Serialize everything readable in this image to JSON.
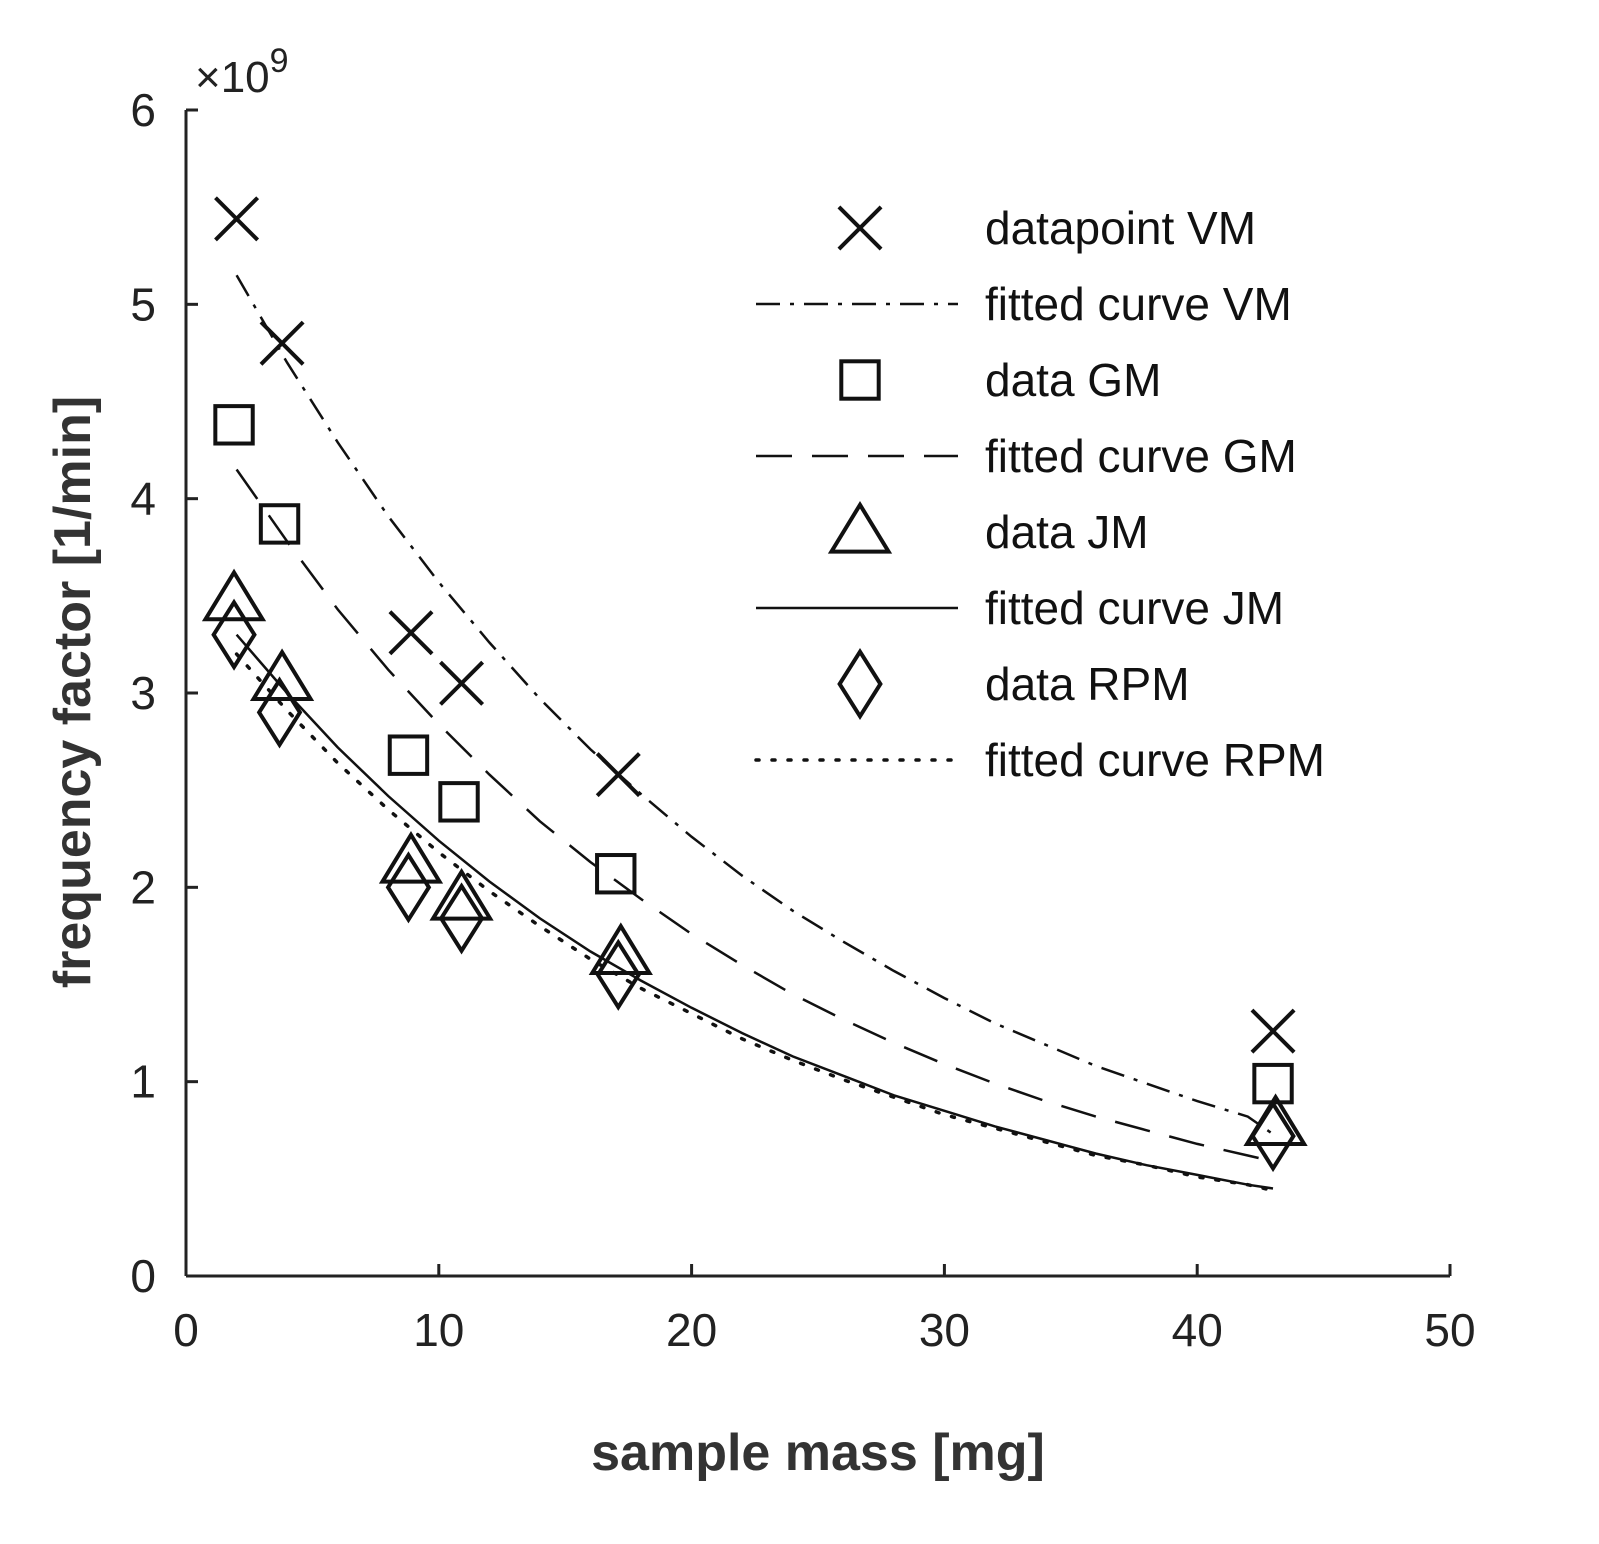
{
  "chart_data": {
    "type": "scatter",
    "xlabel": "sample mass [mg]",
    "ylabel": "frequency factor [1/min]",
    "y_exponent_prefix": "×10",
    "y_exponent": "9",
    "xlim": [
      0,
      50
    ],
    "ylim": [
      0,
      6
    ],
    "x_ticks": [
      0,
      10,
      20,
      30,
      40,
      50
    ],
    "y_ticks": [
      0,
      1,
      2,
      3,
      4,
      5,
      6
    ],
    "y_tick_unit": 1000000000,
    "grid": false,
    "legend_position": "top-right",
    "series": [
      {
        "name": "datapoint VM",
        "kind": "points",
        "marker": "x",
        "x": [
          2.0,
          3.8,
          8.9,
          10.9,
          17.1,
          43.0
        ],
        "y": [
          5.44,
          4.8,
          3.31,
          3.05,
          2.58,
          1.26
        ]
      },
      {
        "name": "fitted curve VM",
        "kind": "line",
        "dash": "dash-dot",
        "x": [
          2,
          4,
          6,
          8,
          10,
          12,
          14,
          16,
          18,
          20,
          22,
          24,
          26,
          28,
          30,
          32,
          34,
          36,
          38,
          40,
          42,
          43
        ],
        "y": [
          5.15,
          4.7,
          4.29,
          3.91,
          3.57,
          3.26,
          2.97,
          2.71,
          2.48,
          2.26,
          2.06,
          1.88,
          1.72,
          1.57,
          1.43,
          1.3,
          1.19,
          1.08,
          0.99,
          0.9,
          0.82,
          0.73
        ]
      },
      {
        "name": "data GM",
        "kind": "points",
        "marker": "square",
        "x": [
          1.9,
          3.7,
          8.8,
          10.8,
          17.0,
          43.0
        ],
        "y": [
          4.38,
          3.87,
          2.68,
          2.44,
          2.07,
          0.99
        ]
      },
      {
        "name": "fitted curve GM",
        "kind": "line",
        "dash": "long-dash",
        "x": [
          2,
          4,
          6,
          8,
          10,
          12,
          14,
          16,
          18,
          20,
          22,
          24,
          26,
          28,
          30,
          32,
          34,
          36,
          38,
          40,
          42,
          43
        ],
        "y": [
          4.15,
          3.78,
          3.43,
          3.12,
          2.84,
          2.58,
          2.34,
          2.13,
          1.94,
          1.76,
          1.6,
          1.45,
          1.32,
          1.2,
          1.09,
          0.99,
          0.9,
          0.82,
          0.75,
          0.68,
          0.62,
          0.59
        ]
      },
      {
        "name": "data JM",
        "kind": "points",
        "marker": "triangle",
        "x": [
          1.9,
          3.8,
          8.9,
          10.9,
          17.2,
          43.1
        ],
        "y": [
          3.48,
          3.07,
          2.13,
          1.94,
          1.66,
          0.78
        ]
      },
      {
        "name": "fitted curve JM",
        "kind": "line",
        "dash": "solid",
        "x": [
          2,
          4,
          6,
          8,
          10,
          12,
          14,
          16,
          18,
          20,
          22,
          24,
          26,
          28,
          30,
          32,
          34,
          36,
          38,
          40,
          42,
          43
        ],
        "y": [
          3.3,
          3.0,
          2.72,
          2.47,
          2.24,
          2.03,
          1.84,
          1.67,
          1.52,
          1.38,
          1.25,
          1.13,
          1.03,
          0.93,
          0.85,
          0.77,
          0.7,
          0.63,
          0.57,
          0.52,
          0.47,
          0.45
        ]
      },
      {
        "name": "data RPM",
        "kind": "points",
        "marker": "diamond",
        "x": [
          1.9,
          3.7,
          8.8,
          10.9,
          17.1,
          43.0
        ],
        "y": [
          3.3,
          2.9,
          2.0,
          1.84,
          1.55,
          0.72
        ]
      },
      {
        "name": "fitted curve RPM",
        "kind": "line",
        "dash": "dotted",
        "x": [
          2,
          4,
          6,
          8,
          10,
          12,
          14,
          16,
          18,
          20,
          22,
          24,
          26,
          28,
          30,
          32,
          34,
          36,
          38,
          40,
          42,
          43
        ],
        "y": [
          3.2,
          2.91,
          2.64,
          2.4,
          2.18,
          1.98,
          1.8,
          1.63,
          1.48,
          1.35,
          1.22,
          1.11,
          1.01,
          0.92,
          0.83,
          0.76,
          0.69,
          0.62,
          0.57,
          0.51,
          0.47,
          0.44
        ]
      }
    ]
  }
}
